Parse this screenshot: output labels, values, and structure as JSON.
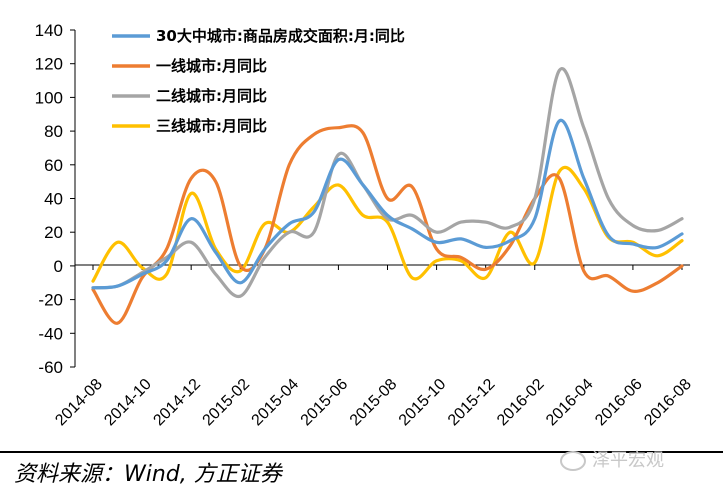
{
  "chart_data": {
    "type": "line",
    "title": "",
    "xlabel": "",
    "ylabel": "",
    "ylim": [
      -60,
      140
    ],
    "yticks": [
      "140",
      "120",
      "100",
      "80",
      "60",
      "40",
      "20",
      "0",
      "-20",
      "-40",
      "-60"
    ],
    "xtick_labels": [
      "2014-08",
      "2014-10",
      "2014-12",
      "2015-02",
      "2015-04",
      "2015-06",
      "2015-08",
      "2015-10",
      "2015-12",
      "2016-02",
      "2016-04",
      "2016-06",
      "2016-08"
    ],
    "x": [
      "2014-08",
      "2014-09",
      "2014-10",
      "2014-11",
      "2014-12",
      "2015-01",
      "2015-02",
      "2015-03",
      "2015-04",
      "2015-05",
      "2015-06",
      "2015-07",
      "2015-08",
      "2015-09",
      "2015-10",
      "2015-11",
      "2015-12",
      "2016-01",
      "2016-02",
      "2016-03",
      "2016-04",
      "2016-05",
      "2016-06",
      "2016-07",
      "2016-08"
    ],
    "legend_position": "top-left",
    "grid": false,
    "series": [
      {
        "name": "30大中城市:商品房成交面积:月:同比",
        "color": "#5b9bd5",
        "values": [
          -13,
          -12,
          -5,
          3,
          28,
          8,
          -10,
          10,
          25,
          32,
          63,
          48,
          30,
          22,
          14,
          16,
          11,
          15,
          28,
          86,
          52,
          18,
          13,
          11,
          19
        ]
      },
      {
        "name": "一线城市:月同比",
        "color": "#ed7d31",
        "values": [
          -14,
          -34,
          -7,
          10,
          52,
          50,
          0,
          10,
          60,
          78,
          82,
          79,
          40,
          47,
          10,
          5,
          -2,
          12,
          40,
          52,
          -3,
          -6,
          -15,
          -10,
          0
        ]
      },
      {
        "name": "二线城市:月同比",
        "color": "#a5a5a5",
        "values": [
          -13,
          -12,
          -4,
          5,
          14,
          -5,
          -18,
          5,
          20,
          20,
          66,
          48,
          28,
          30,
          20,
          26,
          26,
          23,
          40,
          116,
          82,
          40,
          24,
          21,
          28
        ]
      },
      {
        "name": "三线城市:月同比",
        "color": "#ffc000",
        "values": [
          -9,
          14,
          -1,
          -5,
          43,
          10,
          -3,
          25,
          20,
          35,
          48,
          30,
          26,
          -7,
          3,
          3,
          -7,
          20,
          2,
          56,
          46,
          17,
          14,
          6,
          15
        ]
      }
    ]
  },
  "source_note": "资料来源：Wind, 方正证券",
  "watermark": "泽平宏观"
}
